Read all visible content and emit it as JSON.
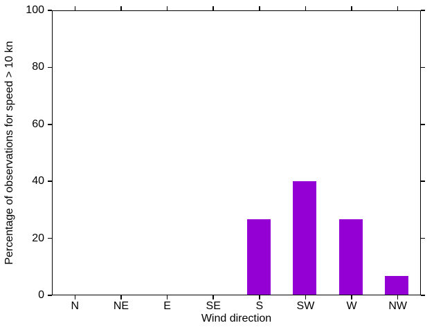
{
  "chart_data": {
    "type": "bar",
    "title": "",
    "xlabel": "Wind direction",
    "ylabel": "Percentage of observations for speed > 10 kn",
    "categories": [
      "N",
      "NE",
      "E",
      "SE",
      "S",
      "SW",
      "W",
      "NW"
    ],
    "values": [
      0,
      0,
      0,
      0,
      26.7,
      40,
      26.7,
      6.7
    ],
    "ylim": [
      0,
      100
    ],
    "y_ticks": [
      0,
      20,
      40,
      60,
      80,
      100
    ],
    "y_tick_labels": [
      "0",
      "20",
      "40",
      "60",
      "80",
      "100"
    ],
    "grid": false,
    "legend": false,
    "colors": {
      "bar": "#9400d3",
      "axis": "#000000",
      "text": "#000000",
      "background": "#ffffff"
    }
  }
}
